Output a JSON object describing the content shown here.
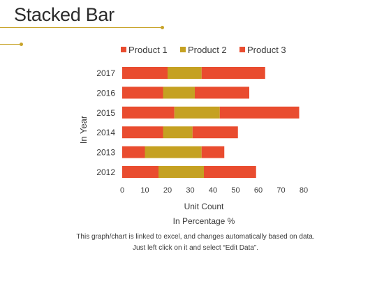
{
  "slide": {
    "title": "Stacked Bar",
    "caption": "This graph/chart is linked to excel, and changes automatically based on data. Just left click on it and select “Edit Data”."
  },
  "colors": {
    "accent_line": "#c8a42a",
    "product1": "#e94c2f",
    "product2": "#c5a122",
    "product3": "#e94c2f"
  },
  "chart_data": {
    "type": "bar",
    "orientation": "horizontal",
    "stacked": true,
    "categories": [
      "2017",
      "2016",
      "2015",
      "2014",
      "2013",
      "2012"
    ],
    "series": [
      {
        "name": "Product 1",
        "color": "#e94c2f",
        "values": [
          20,
          18,
          23,
          18,
          10,
          16
        ]
      },
      {
        "name": "Product 2",
        "color": "#c5a122",
        "values": [
          15,
          14,
          20,
          13,
          25,
          20
        ]
      },
      {
        "name": "Product 3",
        "color": "#e94c2f",
        "values": [
          28,
          24,
          35,
          20,
          10,
          23
        ]
      }
    ],
    "xlim": [
      0,
      80
    ],
    "xticks": [
      "0",
      "10",
      "20",
      "30",
      "40",
      "50",
      "60",
      "70",
      "80"
    ],
    "xlabel": "Unit Count",
    "xlabel2": "In Percentage %",
    "ylabel": "In Year",
    "legend_position": "top",
    "grid": false
  }
}
